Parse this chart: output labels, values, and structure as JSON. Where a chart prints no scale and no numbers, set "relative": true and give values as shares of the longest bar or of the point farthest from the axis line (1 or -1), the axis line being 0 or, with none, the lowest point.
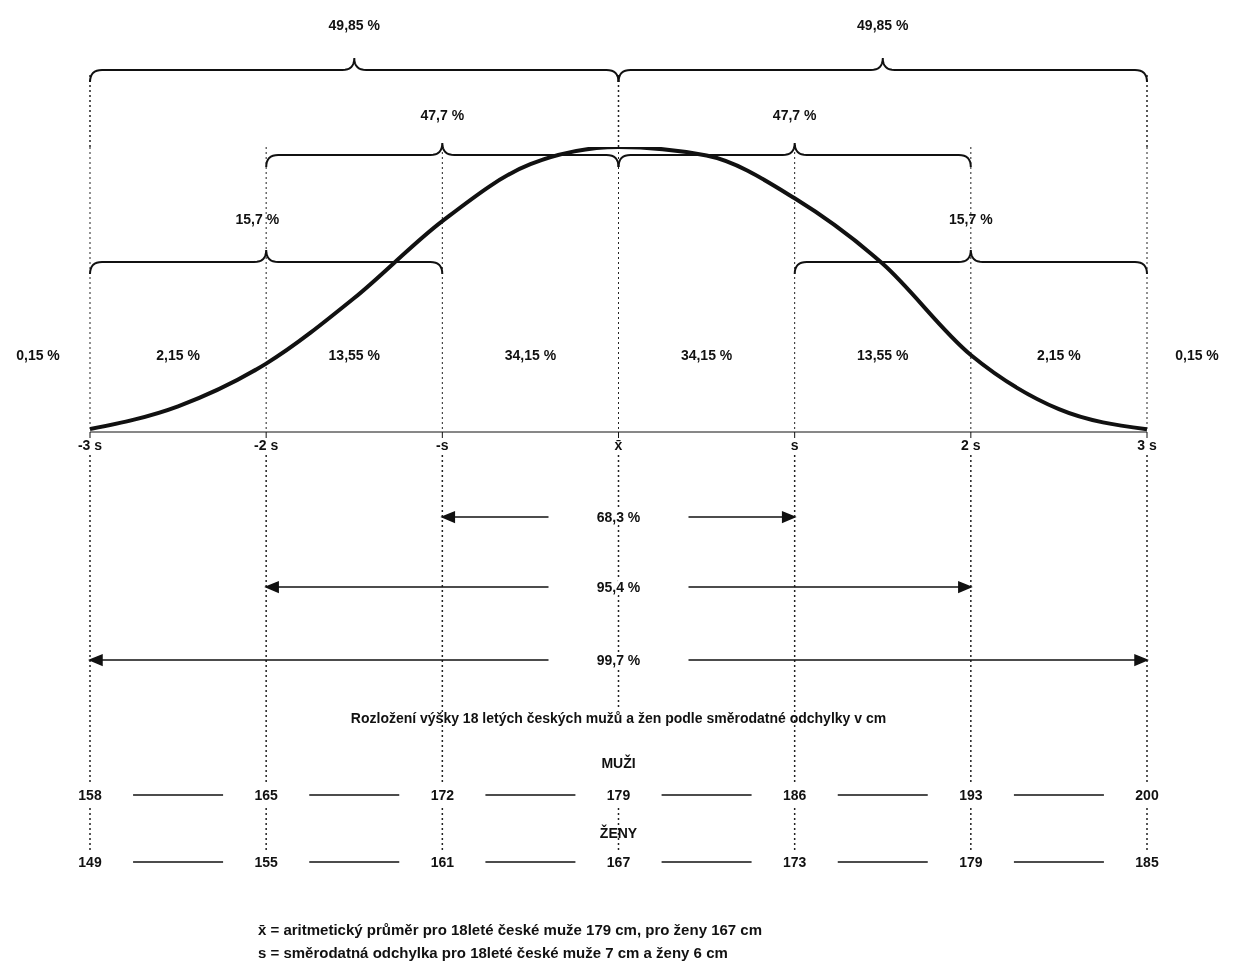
{
  "chart_data": {
    "type": "line",
    "relative": true,
    "grid": "x",
    "marker": "none",
    "line_style": "solid",
    "x": [
      -3,
      -2.5,
      -2,
      -1.5,
      -1,
      -0.5,
      0,
      0.5,
      1,
      1.5,
      2,
      2.5,
      3
    ],
    "series": [
      {
        "color": "#111111",
        "values": [
          0.01,
          0.09,
          0.24,
          0.47,
          0.74,
          0.94,
          1,
          0.97,
          0.82,
          0.59,
          0.27,
          0.08,
          0.01
        ]
      }
    ],
    "xlim": [
      -3,
      3
    ],
    "xticks": [
      {
        "value": -3,
        "label": "-3 s"
      },
      {
        "value": -2,
        "label": "-2 s"
      },
      {
        "value": -1,
        "label": "-s"
      },
      {
        "value": 0,
        "label": "x̄"
      },
      {
        "value": 1,
        "label": "s"
      },
      {
        "value": 2,
        "label": "2 s"
      },
      {
        "value": 3,
        "label": "3 s"
      }
    ],
    "annotations": [
      "49,85 %",
      "49,85 %",
      "47,7 %",
      "47,7 %",
      "15,7 %",
      "15,7 %",
      "0,15 %",
      "2,15 %",
      "13,55 %",
      "34,15 %",
      "34,15 %",
      "13,55 %",
      "2,15 %",
      "0,15 %",
      "68,3 %",
      "95,4 %",
      "99,7 %",
      "Rozložení výšky 18 letých českých mužů a žen podle směrodatné odchylky v cm",
      "MUŽI",
      "158",
      "165",
      "172",
      "179",
      "186",
      "193",
      "200",
      "ŽENY",
      "149",
      "155",
      "161",
      "167",
      "173",
      "179",
      "185",
      "x̄ = aritmetický průměr pro 18leté české muže 179 cm, pro ženy 167 cm",
      "s = směrodatná odchylka pro 18leté české muže 7 cm a ženy 6 cm"
    ]
  }
}
